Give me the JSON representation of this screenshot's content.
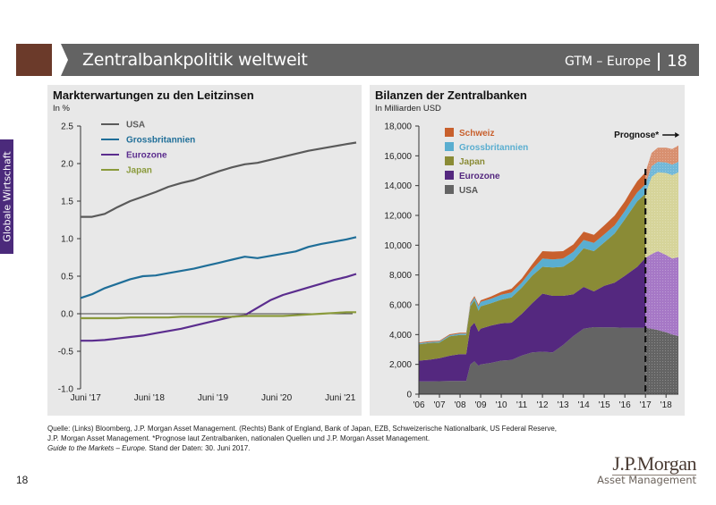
{
  "header": {
    "title": "Zentralbankpolitik weltweit",
    "section": "GTM – Europe",
    "page": "18"
  },
  "side_tab": "Globale Wirtschaft",
  "colors": {
    "header_accent": "#6b3a2a",
    "header_bar": "#636363",
    "side_tab": "#4b2a7b",
    "panel_bg": "#e8e8e8"
  },
  "chart_data": [
    {
      "type": "line",
      "title": "Markterwartungen zu den Leitzinsen",
      "subtitle": "In %",
      "xlabel": "",
      "ylabel": "In %",
      "ylim": [
        -1.0,
        2.5
      ],
      "yticks": [
        "2.5",
        "2.0",
        "1.5",
        "1.0",
        "0.5",
        "0.0",
        "-0.5",
        "-1.0"
      ],
      "ytick_values": [
        2.5,
        2.0,
        1.5,
        1.0,
        0.5,
        0.0,
        -0.5,
        -1.0
      ],
      "xlim": [
        2017.42,
        2021.75
      ],
      "xticks": [
        "Juni '17",
        "Juni '18",
        "Juni '19",
        "Juni '20",
        "Juni '21"
      ],
      "xtick_values": [
        2017.5,
        2018.5,
        2019.5,
        2020.5,
        2021.5
      ],
      "grid": false,
      "legend": "top-left",
      "x": [
        2017.42,
        2017.6,
        2017.8,
        2018.0,
        2018.2,
        2018.4,
        2018.6,
        2018.8,
        2019.0,
        2019.2,
        2019.4,
        2019.6,
        2019.8,
        2020.0,
        2020.2,
        2020.4,
        2020.6,
        2020.8,
        2021.0,
        2021.2,
        2021.4,
        2021.6,
        2021.75
      ],
      "series": [
        {
          "name": "USA",
          "color": "#5a5a5a",
          "values": [
            1.29,
            1.29,
            1.33,
            1.42,
            1.5,
            1.56,
            1.62,
            1.69,
            1.74,
            1.78,
            1.84,
            1.9,
            1.95,
            1.99,
            2.01,
            2.05,
            2.09,
            2.13,
            2.17,
            2.2,
            2.23,
            2.26,
            2.28
          ]
        },
        {
          "name": "Grossbritannien",
          "color": "#1f6e98",
          "values": [
            0.21,
            0.26,
            0.34,
            0.4,
            0.46,
            0.5,
            0.51,
            0.54,
            0.57,
            0.6,
            0.64,
            0.68,
            0.72,
            0.76,
            0.74,
            0.77,
            0.8,
            0.83,
            0.89,
            0.93,
            0.96,
            0.99,
            1.02
          ]
        },
        {
          "name": "Eurozone",
          "color": "#5b2d8e",
          "values": [
            -0.36,
            -0.36,
            -0.35,
            -0.33,
            -0.31,
            -0.29,
            -0.26,
            -0.23,
            -0.2,
            -0.16,
            -0.12,
            -0.08,
            -0.04,
            -0.02,
            0.08,
            0.18,
            0.25,
            0.3,
            0.35,
            0.4,
            0.45,
            0.49,
            0.53
          ]
        },
        {
          "name": "Japan",
          "color": "#8a9a3b",
          "values": [
            -0.06,
            -0.06,
            -0.06,
            -0.06,
            -0.05,
            -0.05,
            -0.05,
            -0.05,
            -0.04,
            -0.04,
            -0.04,
            -0.04,
            -0.04,
            -0.03,
            -0.03,
            -0.03,
            -0.03,
            -0.02,
            -0.01,
            0.0,
            0.01,
            0.02,
            0.02
          ]
        }
      ],
      "zero_line": 0.0
    },
    {
      "type": "area",
      "stacked": true,
      "title": "Bilanzen der Zentralbanken",
      "subtitle": "In Milliarden USD",
      "xlabel": "",
      "ylabel": "In Milliarden USD",
      "ylim": [
        0,
        18000
      ],
      "yticks": [
        "18,000",
        "16,000",
        "14,000",
        "12,000",
        "10,000",
        "8,000",
        "6,000",
        "4,000",
        "2,000",
        "0"
      ],
      "ytick_values": [
        18000,
        16000,
        14000,
        12000,
        10000,
        8000,
        6000,
        4000,
        2000,
        0
      ],
      "xlim": [
        2006,
        2018.6
      ],
      "xticks": [
        "'06",
        "'07",
        "'08",
        "'09",
        "'10",
        "'11",
        "'12",
        "'13",
        "'14",
        "'15",
        "'16",
        "'17",
        "'18"
      ],
      "xtick_values": [
        2006,
        2007,
        2008,
        2009,
        2010,
        2011,
        2012,
        2013,
        2014,
        2015,
        2016,
        2017,
        2018
      ],
      "grid": false,
      "legend": "top-left",
      "annotation": {
        "label": "Prognose*",
        "x": 2017,
        "arrow": "right"
      },
      "forecast_start": 2017,
      "x": [
        2006.0,
        2006.5,
        2007.0,
        2007.5,
        2008.0,
        2008.3,
        2008.5,
        2008.7,
        2008.9,
        2009.0,
        2009.5,
        2010.0,
        2010.5,
        2011.0,
        2011.5,
        2012.0,
        2012.5,
        2013.0,
        2013.5,
        2014.0,
        2014.5,
        2015.0,
        2015.5,
        2016.0,
        2016.3,
        2016.6,
        2017.0,
        2017.3,
        2017.6,
        2018.0,
        2018.3,
        2018.6
      ],
      "series": [
        {
          "name": "USA",
          "color": "#646464",
          "values": [
            850,
            860,
            870,
            880,
            880,
            880,
            2000,
            2200,
            1900,
            2000,
            2100,
            2250,
            2300,
            2600,
            2800,
            2850,
            2800,
            3300,
            3900,
            4400,
            4500,
            4480,
            4480,
            4450,
            4450,
            4450,
            4450,
            4400,
            4300,
            4150,
            4000,
            3900
          ]
        },
        {
          "name": "Eurozone",
          "color": "#54287f",
          "values": [
            1400,
            1450,
            1550,
            1700,
            1800,
            1800,
            2500,
            2600,
            2300,
            2400,
            2500,
            2500,
            2500,
            2800,
            3300,
            3900,
            3800,
            3300,
            2800,
            2800,
            2400,
            2800,
            3000,
            3500,
            3800,
            4100,
            4700,
            5000,
            5300,
            5200,
            5100,
            5300
          ]
        },
        {
          "name": "Japan",
          "color": "#8a8b36",
          "values": [
            1100,
            1120,
            1050,
            1300,
            1300,
            1300,
            1400,
            1500,
            1400,
            1500,
            1500,
            1600,
            1700,
            1750,
            1850,
            1800,
            1900,
            1950,
            2300,
            2600,
            2700,
            2900,
            3300,
            3800,
            4100,
            4400,
            4300,
            5200,
            5300,
            5500,
            5600,
            5700
          ]
        },
        {
          "name": "Grossbritannien",
          "color": "#5aaed0",
          "values": [
            70,
            70,
            70,
            80,
            80,
            80,
            150,
            180,
            300,
            300,
            300,
            320,
            330,
            350,
            420,
            550,
            550,
            550,
            550,
            550,
            550,
            550,
            550,
            550,
            600,
            600,
            650,
            700,
            700,
            700,
            700,
            700
          ]
        },
        {
          "name": "Schweiz",
          "color": "#c8602d",
          "values": [
            50,
            50,
            50,
            60,
            60,
            60,
            80,
            100,
            100,
            100,
            150,
            200,
            250,
            270,
            350,
            500,
            520,
            500,
            500,
            550,
            550,
            600,
            650,
            650,
            700,
            750,
            800,
            900,
            950,
            1000,
            1050,
            1100
          ]
        }
      ],
      "forecast_colors": {
        "USA": "#646464",
        "Eurozone": "#a678c6",
        "Japan": "#d6d49a",
        "Grossbritannien": "#72b8d8",
        "Schweiz": "#d89070"
      }
    }
  ],
  "footer": {
    "line1": "Quelle: (Links) Bloomberg, J.P. Morgan Asset Management. (Rechts) Bank of England, Bank of Japan, EZB, Schweizerische Nationalbank, US Federal Reserve,",
    "line2": "J.P. Morgan Asset Management. *Prognose laut Zentralbanken, nationalen Quellen und J.P. Morgan Asset Management.",
    "line3_italic": "Guide to the Markets – Europe.",
    "line3_rest": " Stand der Daten: 30. Juni 2017."
  },
  "page_number": "18",
  "logo": {
    "brand": "J.P.Morgan",
    "sub": "Asset Management"
  }
}
